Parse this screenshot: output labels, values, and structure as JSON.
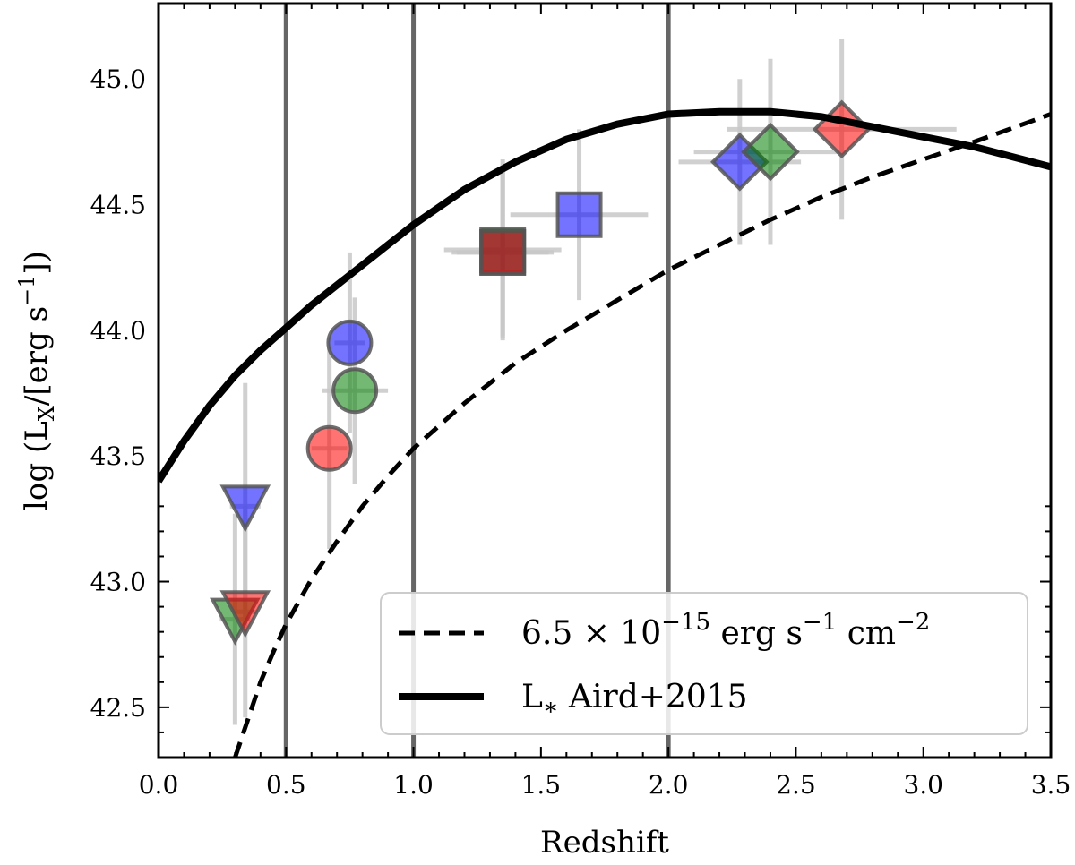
{
  "chart_data": {
    "type": "scatter",
    "xlabel": "Redshift",
    "ylabel": {
      "main": "log (L",
      "sub": "X",
      "mid": "/[erg s",
      "sup": "−1",
      "end": "])"
    },
    "xlim": [
      0.0,
      3.5
    ],
    "ylim": [
      42.3,
      45.3
    ],
    "xticks": [
      "0.0",
      "0.5",
      "1.0",
      "1.5",
      "2.0",
      "2.5",
      "3.0",
      "3.5"
    ],
    "yticks": [
      "42.5",
      "43.0",
      "43.5",
      "44.0",
      "44.5",
      "45.0"
    ],
    "vlines": [
      0.5,
      1.0,
      2.0
    ],
    "colors": {
      "red": "#ff0000",
      "green": "#008000",
      "blue": "#0000ff",
      "edge": "#555555",
      "err": "#c8c8c8",
      "vline": "#666666"
    },
    "points": [
      {
        "marker": "v",
        "color": "blue",
        "x": 0.34,
        "y": 43.3,
        "xerr": 0.06,
        "yerr": 0.49
      },
      {
        "marker": "v",
        "color": "green",
        "x": 0.3,
        "y": 42.85,
        "xerr": 0.06,
        "yerr": 0.42
      },
      {
        "marker": "v",
        "color": "red",
        "x": 0.34,
        "y": 42.88,
        "xerr": 0.05,
        "yerr": 0.42
      },
      {
        "marker": "o",
        "color": "red",
        "x": 0.67,
        "y": 43.53,
        "xerr": 0.07,
        "yerr": 0.4
      },
      {
        "marker": "o",
        "color": "blue",
        "x": 0.75,
        "y": 43.95,
        "xerr": 0.06,
        "yerr": 0.36
      },
      {
        "marker": "o",
        "color": "green",
        "x": 0.77,
        "y": 43.76,
        "xerr": 0.13,
        "yerr": 0.37
      },
      {
        "marker": "s",
        "color": "blue",
        "x": 1.35,
        "y": 44.31,
        "xerr": 0.2,
        "yerr": 0.33
      },
      {
        "marker": "s",
        "color": "green",
        "x": 1.35,
        "y": 44.32,
        "xerr": 0.23,
        "yerr": 0.36
      },
      {
        "marker": "s",
        "color": "red",
        "x": 1.35,
        "y": 44.31,
        "xerr": 0.18,
        "yerr": 0.34
      },
      {
        "marker": "s",
        "color": "blue",
        "x": 1.65,
        "y": 44.46,
        "xerr": 0.27,
        "yerr": 0.34
      },
      {
        "marker": "D",
        "color": "blue",
        "x": 2.28,
        "y": 44.67,
        "xerr": 0.24,
        "yerr": 0.33
      },
      {
        "marker": "D",
        "color": "green",
        "x": 2.4,
        "y": 44.71,
        "xerr": 0.3,
        "yerr": 0.37
      },
      {
        "marker": "D",
        "color": "red",
        "x": 2.68,
        "y": 44.8,
        "xerr": 0.45,
        "yerr": 0.36
      }
    ],
    "curves": [
      {
        "name": "flux_limit",
        "style": "dashed",
        "label": {
          "pre": "6.5 × 10",
          "sup": "−15",
          "mid": " erg s",
          "sup2": "−1",
          "mid2": " cm",
          "sup3": "−2"
        },
        "x": [
          0.3,
          0.35,
          0.4,
          0.45,
          0.5,
          0.6,
          0.7,
          0.8,
          0.9,
          1.0,
          1.2,
          1.4,
          1.6,
          1.8,
          2.0,
          2.2,
          2.4,
          2.6,
          2.8,
          3.0,
          3.2,
          3.5
        ],
        "y": [
          42.3,
          42.45,
          42.6,
          42.72,
          42.83,
          43.01,
          43.16,
          43.3,
          43.42,
          43.53,
          43.71,
          43.87,
          44.0,
          44.12,
          44.24,
          44.34,
          44.44,
          44.53,
          44.61,
          44.68,
          44.75,
          44.86
        ]
      },
      {
        "name": "L_star_Aird2015",
        "style": "solid",
        "label": {
          "pre": "L",
          "sub": "∗",
          "post": " Aird+2015"
        },
        "x": [
          0.0,
          0.1,
          0.2,
          0.3,
          0.4,
          0.5,
          0.6,
          0.7,
          0.8,
          0.9,
          1.0,
          1.2,
          1.4,
          1.6,
          1.8,
          2.0,
          2.2,
          2.4,
          2.6,
          2.8,
          3.0,
          3.2,
          3.5
        ],
        "y": [
          43.4,
          43.56,
          43.7,
          43.82,
          43.92,
          44.01,
          44.1,
          44.18,
          44.26,
          44.34,
          44.42,
          44.56,
          44.67,
          44.76,
          44.82,
          44.86,
          44.87,
          44.87,
          44.85,
          44.81,
          44.77,
          44.73,
          44.65
        ]
      }
    ]
  }
}
